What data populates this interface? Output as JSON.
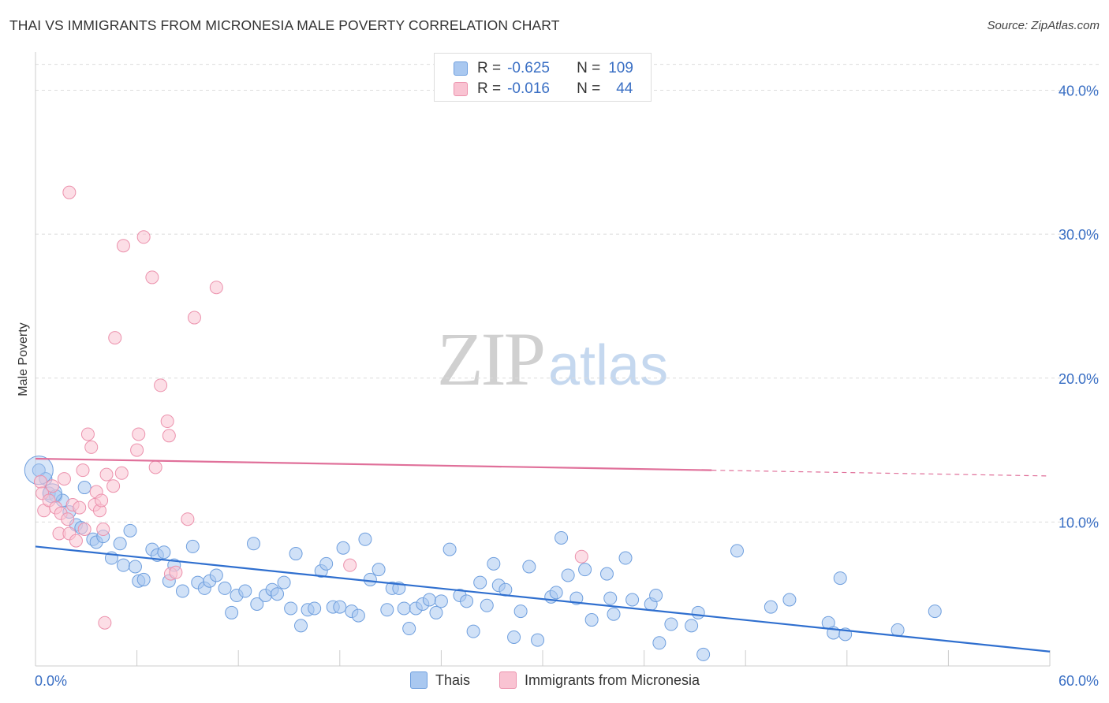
{
  "title": "THAI VS IMMIGRANTS FROM MICRONESIA MALE POVERTY CORRELATION CHART",
  "source": "Source: ZipAtlas.com",
  "watermark": {
    "zip": "ZIP",
    "atlas": "atlas"
  },
  "legend": {
    "rows": [
      {
        "r_label": "R =",
        "r_value": "-0.625",
        "n_label": "N =",
        "n_value": "109",
        "color": "#a9c8f0",
        "border": "#6f9fde"
      },
      {
        "r_label": "R =",
        "r_value": "-0.016",
        "n_label": "N =",
        "n_value": "44",
        "color": "#f9c3d2",
        "border": "#ec92ad"
      }
    ]
  },
  "bottom_legend": [
    {
      "label": "Thais",
      "color": "#a9c8f0",
      "border": "#6f9fde"
    },
    {
      "label": "Immigrants from Micronesia",
      "color": "#f9c3d2",
      "border": "#ec92ad"
    }
  ],
  "chart_data": {
    "type": "scatter",
    "xlabel": "",
    "ylabel": "Male Poverty",
    "xlim": [
      0,
      60
    ],
    "ylim": [
      0,
      42
    ],
    "x_tick_labels": [
      "0.0%",
      "60.0%"
    ],
    "y_tick_labels": [
      "10.0%",
      "20.0%",
      "30.0%",
      "40.0%"
    ],
    "y_ticks": [
      10,
      20,
      30,
      40
    ],
    "grid": true,
    "legend_position": "top-center",
    "series": [
      {
        "name": "Thais",
        "color": "#6f9fde",
        "fill": "#a9c8f0",
        "trend": {
          "x": [
            0,
            60
          ],
          "y": [
            8.3,
            1.0
          ],
          "color": "#2f6fcf"
        },
        "points": [
          [
            0.2,
            13.6
          ],
          [
            0.6,
            13.0
          ],
          [
            0.8,
            12.0
          ],
          [
            1.2,
            11.8
          ],
          [
            1.6,
            11.5
          ],
          [
            2.0,
            10.7
          ],
          [
            2.4,
            9.8
          ],
          [
            2.7,
            9.6
          ],
          [
            2.9,
            12.4
          ],
          [
            3.4,
            8.8
          ],
          [
            3.6,
            8.6
          ],
          [
            4.0,
            9.0
          ],
          [
            4.5,
            7.5
          ],
          [
            5.0,
            8.5
          ],
          [
            5.2,
            7.0
          ],
          [
            5.6,
            9.4
          ],
          [
            5.9,
            6.9
          ],
          [
            6.1,
            5.9
          ],
          [
            6.4,
            6.0
          ],
          [
            6.9,
            8.1
          ],
          [
            7.2,
            7.7
          ],
          [
            7.6,
            7.9
          ],
          [
            7.9,
            5.9
          ],
          [
            8.2,
            7.0
          ],
          [
            8.7,
            5.2
          ],
          [
            9.3,
            8.3
          ],
          [
            9.6,
            5.8
          ],
          [
            10.0,
            5.4
          ],
          [
            10.3,
            5.9
          ],
          [
            10.7,
            6.3
          ],
          [
            11.2,
            5.4
          ],
          [
            11.6,
            3.7
          ],
          [
            11.9,
            4.9
          ],
          [
            12.4,
            5.2
          ],
          [
            12.9,
            8.5
          ],
          [
            13.1,
            4.3
          ],
          [
            13.6,
            4.9
          ],
          [
            14.0,
            5.3
          ],
          [
            14.3,
            5.0
          ],
          [
            14.7,
            5.8
          ],
          [
            15.1,
            4.0
          ],
          [
            15.4,
            7.8
          ],
          [
            15.7,
            2.8
          ],
          [
            16.1,
            3.9
          ],
          [
            16.5,
            4.0
          ],
          [
            16.9,
            6.6
          ],
          [
            17.2,
            7.1
          ],
          [
            17.6,
            4.1
          ],
          [
            18.0,
            4.1
          ],
          [
            18.2,
            8.2
          ],
          [
            18.7,
            3.8
          ],
          [
            19.1,
            3.5
          ],
          [
            19.5,
            8.8
          ],
          [
            19.8,
            6.0
          ],
          [
            20.3,
            6.7
          ],
          [
            20.8,
            3.9
          ],
          [
            21.1,
            5.4
          ],
          [
            21.5,
            5.4
          ],
          [
            21.8,
            4.0
          ],
          [
            22.1,
            2.6
          ],
          [
            22.5,
            4.0
          ],
          [
            22.9,
            4.3
          ],
          [
            23.3,
            4.6
          ],
          [
            23.7,
            3.7
          ],
          [
            24.0,
            4.5
          ],
          [
            24.5,
            8.1
          ],
          [
            25.1,
            4.9
          ],
          [
            25.5,
            4.5
          ],
          [
            25.9,
            2.4
          ],
          [
            26.3,
            5.8
          ],
          [
            26.7,
            4.2
          ],
          [
            27.1,
            7.1
          ],
          [
            27.4,
            5.6
          ],
          [
            27.8,
            5.3
          ],
          [
            28.3,
            2.0
          ],
          [
            28.7,
            3.8
          ],
          [
            29.2,
            6.9
          ],
          [
            29.7,
            1.8
          ],
          [
            30.5,
            4.8
          ],
          [
            30.8,
            5.1
          ],
          [
            31.1,
            8.9
          ],
          [
            31.5,
            6.3
          ],
          [
            32.0,
            4.7
          ],
          [
            32.5,
            6.7
          ],
          [
            32.9,
            3.2
          ],
          [
            33.8,
            6.4
          ],
          [
            34.0,
            4.7
          ],
          [
            34.2,
            3.6
          ],
          [
            34.9,
            7.5
          ],
          [
            35.3,
            4.6
          ],
          [
            36.4,
            4.3
          ],
          [
            36.7,
            4.9
          ],
          [
            36.9,
            1.6
          ],
          [
            37.6,
            2.9
          ],
          [
            38.8,
            2.8
          ],
          [
            39.2,
            3.7
          ],
          [
            39.5,
            0.8
          ],
          [
            41.5,
            8.0
          ],
          [
            43.5,
            4.1
          ],
          [
            44.6,
            4.6
          ],
          [
            46.9,
            3.0
          ],
          [
            47.2,
            2.3
          ],
          [
            47.6,
            6.1
          ],
          [
            47.9,
            2.2
          ],
          [
            51.0,
            2.5
          ],
          [
            53.2,
            3.8
          ]
        ],
        "big": [
          [
            0.2,
            13.6,
            18
          ],
          [
            1.0,
            12.0,
            12
          ]
        ]
      },
      {
        "name": "Immigrants from Micronesia",
        "color": "#ec92ad",
        "fill": "#f9c3d2",
        "trend": {
          "x": [
            0,
            40
          ],
          "y": [
            14.4,
            13.6
          ],
          "dash_to": [
            60,
            13.2
          ],
          "color": "#e0709a"
        },
        "points": [
          [
            0.3,
            12.8
          ],
          [
            0.4,
            12.0
          ],
          [
            0.5,
            10.8
          ],
          [
            0.8,
            11.5
          ],
          [
            1.0,
            12.5
          ],
          [
            1.2,
            11.0
          ],
          [
            1.4,
            9.2
          ],
          [
            1.5,
            10.6
          ],
          [
            1.7,
            13.0
          ],
          [
            1.9,
            10.2
          ],
          [
            2.0,
            9.2
          ],
          [
            2.2,
            11.2
          ],
          [
            2.4,
            8.7
          ],
          [
            2.6,
            11.0
          ],
          [
            2.8,
            13.6
          ],
          [
            2.9,
            9.5
          ],
          [
            3.1,
            16.1
          ],
          [
            3.3,
            15.2
          ],
          [
            3.5,
            11.2
          ],
          [
            3.6,
            12.1
          ],
          [
            3.8,
            10.8
          ],
          [
            3.9,
            11.5
          ],
          [
            4.0,
            9.5
          ],
          [
            4.2,
            13.3
          ],
          [
            4.1,
            3.0
          ],
          [
            4.6,
            12.5
          ],
          [
            4.7,
            22.8
          ],
          [
            5.1,
            13.4
          ],
          [
            5.2,
            29.2
          ],
          [
            6.0,
            15.0
          ],
          [
            6.1,
            16.1
          ],
          [
            6.4,
            29.8
          ],
          [
            6.9,
            27.0
          ],
          [
            7.1,
            13.8
          ],
          [
            7.4,
            19.5
          ],
          [
            7.8,
            17.0
          ],
          [
            7.9,
            16.0
          ],
          [
            8.0,
            6.4
          ],
          [
            8.3,
            6.5
          ],
          [
            9.0,
            10.2
          ],
          [
            9.4,
            24.2
          ],
          [
            10.7,
            26.3
          ],
          [
            18.6,
            7.0
          ],
          [
            32.3,
            7.6
          ]
        ],
        "extra_top": [
          [
            2.0,
            32.9
          ]
        ]
      }
    ]
  }
}
